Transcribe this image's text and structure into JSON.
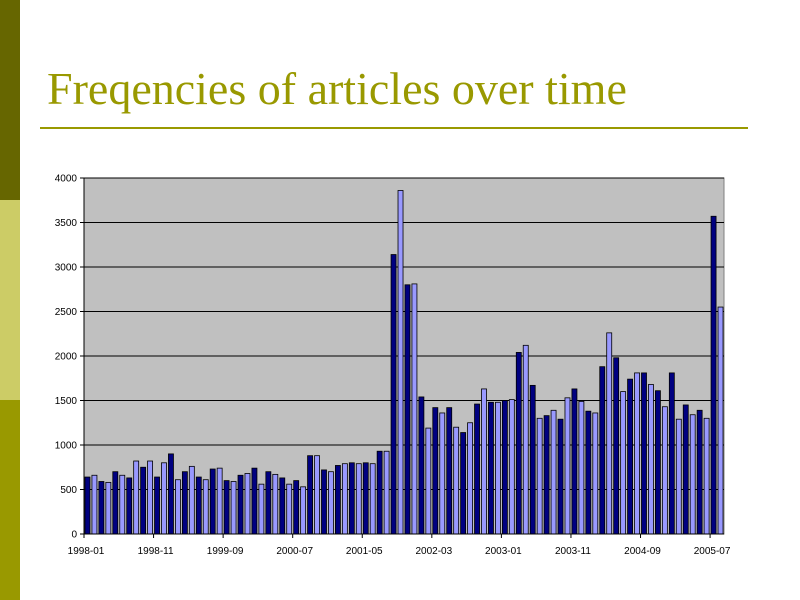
{
  "slide": {
    "title": "Freqencies of articles over time",
    "colors": {
      "title": "#999900",
      "bar_dark": "#000080",
      "bar_light": "#9999FF",
      "plot_bg": "#C0C0C0"
    }
  },
  "chart_data": {
    "type": "bar",
    "title": "",
    "xlabel": "",
    "ylabel": "",
    "ylim": [
      0,
      4000
    ],
    "yticks": [
      0,
      500,
      1000,
      1500,
      2000,
      2500,
      3000,
      3500,
      4000
    ],
    "grid": true,
    "legend": "none",
    "x_tick_labels": [
      "1998-01",
      "1998-11",
      "1999-09",
      "2000-07",
      "2001-05",
      "2002-03",
      "2003-01",
      "2003-11",
      "2004-09",
      "2005-07"
    ],
    "x_tick_every": 10,
    "series": [
      {
        "values": [
          640,
          660,
          590,
          580,
          700,
          660,
          630,
          820,
          750,
          820,
          640,
          800,
          900,
          610,
          700,
          760,
          640,
          610,
          730,
          740,
          600,
          590,
          660,
          680,
          740,
          560,
          700,
          670,
          630,
          560,
          600,
          530,
          880,
          880,
          720,
          700,
          770,
          790,
          800,
          790,
          800,
          790,
          930,
          930,
          3140,
          3860,
          2800,
          2810,
          1540,
          1190,
          1420,
          1360,
          1420,
          1200,
          1140,
          1250,
          1460,
          1630,
          1480,
          1480,
          1500,
          1510,
          2040,
          2120,
          1670,
          1300,
          1330,
          1390,
          1290,
          1530,
          1630,
          1490,
          1380,
          1360,
          1880,
          2260,
          1980,
          1600,
          1740,
          1810,
          1810,
          1680,
          1610,
          1430,
          1810,
          1290,
          1450,
          1340,
          1390,
          1300,
          3570,
          2550
        ]
      }
    ]
  }
}
